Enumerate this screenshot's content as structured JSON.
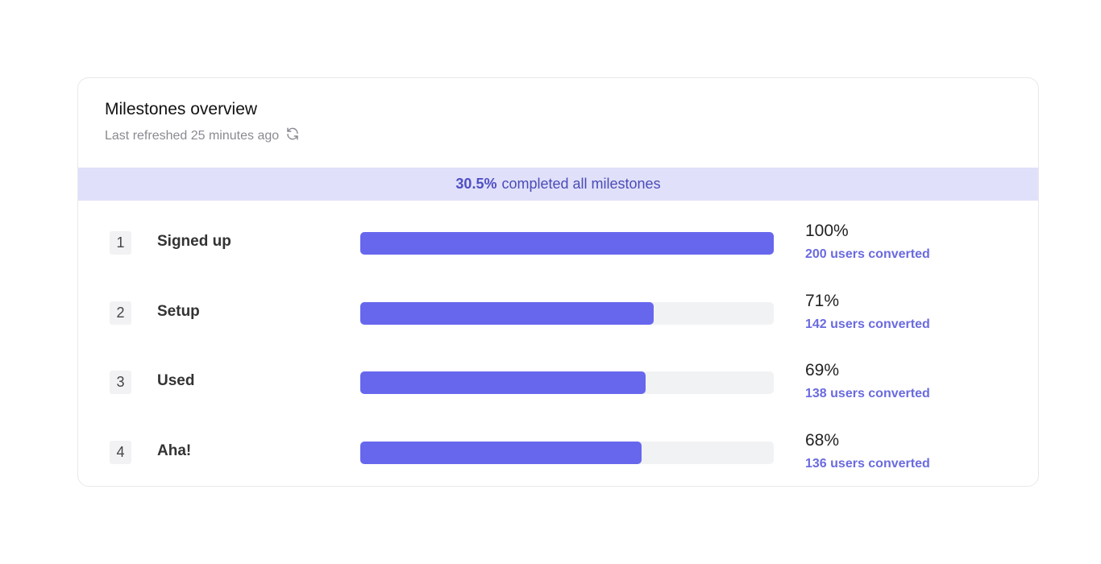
{
  "header": {
    "title": "Milestones overview",
    "refreshed": "Last refreshed 25 minutes ago",
    "refresh_icon": "refresh-icon"
  },
  "banner": {
    "percent": "30.5%",
    "text": "completed all milestones"
  },
  "colors": {
    "bar": "#6767ee",
    "track": "#f1f2f4",
    "banner": "#e0e0fa"
  },
  "milestones": [
    {
      "index": "1",
      "name": "Signed up",
      "percent": "100%",
      "value": 100,
      "converted": "200 users converted"
    },
    {
      "index": "2",
      "name": "Setup",
      "percent": "71%",
      "value": 71,
      "converted": "142 users converted"
    },
    {
      "index": "3",
      "name": "Used",
      "percent": "69%",
      "value": 69,
      "converted": "138 users converted"
    },
    {
      "index": "4",
      "name": "Aha!",
      "percent": "68%",
      "value": 68,
      "converted": "136 users converted"
    }
  ]
}
